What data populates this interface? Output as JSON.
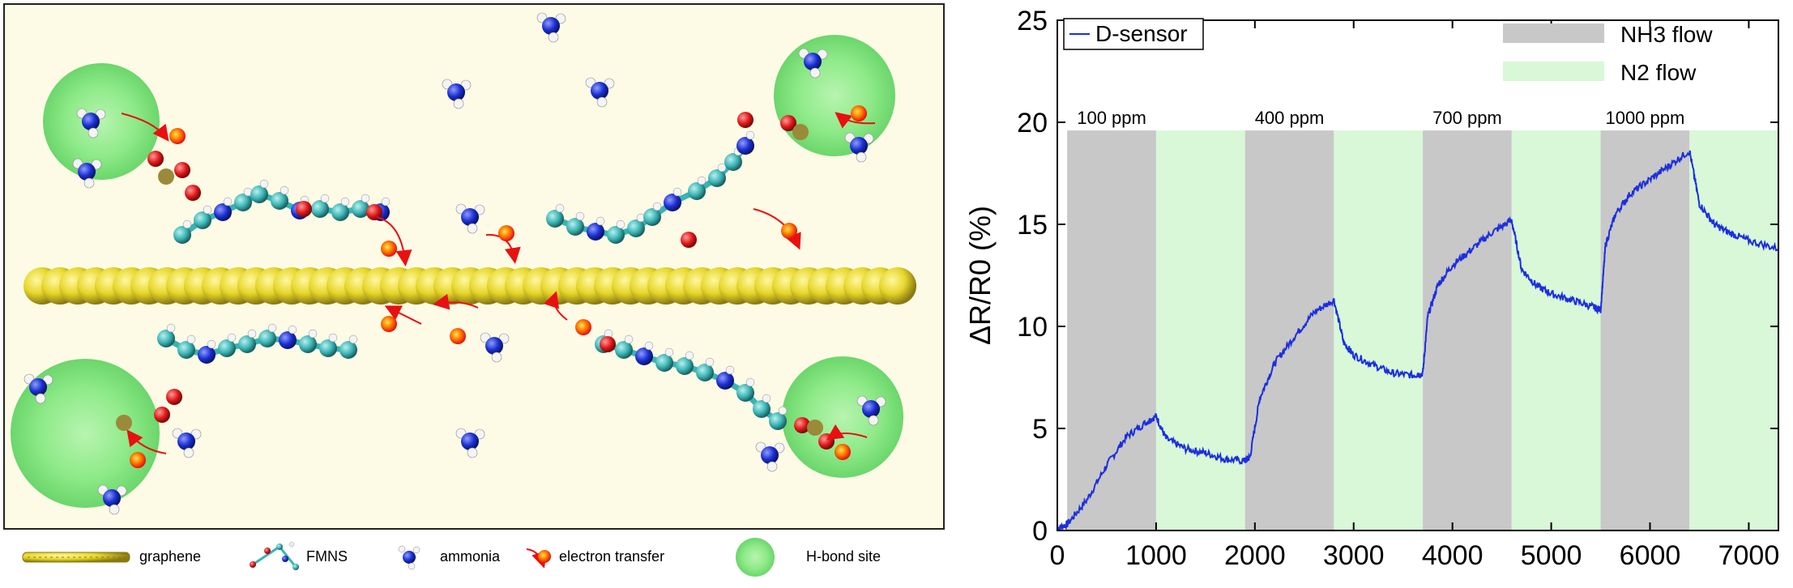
{
  "legend": {
    "graphene": "graphene",
    "fmns": "FMNS",
    "ammonia": "ammonia",
    "electron_transfer": "electron transfer",
    "hbond": "H-bond site"
  },
  "colors": {
    "panel_bg": "#fdfbe6",
    "graphene": "#e6d62a",
    "ammonia_n": "#1a2fd0",
    "oxygen": "#e01818",
    "carbon": "#3ab3b3",
    "phosphorus": "#9a8a3a",
    "hbond": "#7ee07e",
    "nh3_band": "#c8c8c8",
    "n2_band": "#d8f8d8",
    "curve": "#1c2ee0"
  },
  "chart_data": {
    "type": "line",
    "ylabel": "ΔR/R0 (%)",
    "xlim": [
      0,
      7300
    ],
    "ylim": [
      0,
      25
    ],
    "xticks": [
      0,
      1000,
      2000,
      3000,
      4000,
      5000,
      6000,
      7000
    ],
    "yticks": [
      0,
      5,
      10,
      15,
      20,
      25
    ],
    "legend_entries": [
      {
        "label": "D-sensor",
        "kind": "line",
        "color": "#1c2ee0"
      },
      {
        "label": "NH3 flow",
        "kind": "patch",
        "color": "#c8c8c8"
      },
      {
        "label": "N2 flow",
        "kind": "patch",
        "color": "#d8f8d8"
      }
    ],
    "band_top": 19.6,
    "cycles": [
      {
        "label": "100 ppm",
        "nh3": [
          100,
          1000
        ],
        "n2": [
          1000,
          1900
        ]
      },
      {
        "label": "400 ppm",
        "nh3": [
          1900,
          2800
        ],
        "n2": [
          2800,
          3700
        ]
      },
      {
        "label": "700 ppm",
        "nh3": [
          3700,
          4600
        ],
        "n2": [
          4600,
          5500
        ]
      },
      {
        "label": "1000 ppm",
        "nh3": [
          5500,
          6400
        ],
        "n2": [
          6400,
          7300
        ]
      }
    ],
    "series": [
      {
        "name": "D-sensor",
        "x": [
          0,
          100,
          300,
          500,
          700,
          900,
          1000,
          1100,
          1300,
          1500,
          1700,
          1900,
          1950,
          2050,
          2200,
          2400,
          2600,
          2800,
          2900,
          3000,
          3200,
          3400,
          3600,
          3700,
          3750,
          3850,
          4000,
          4200,
          4400,
          4600,
          4700,
          4850,
          5000,
          5200,
          5400,
          5500,
          5550,
          5650,
          5800,
          6000,
          6200,
          6400,
          6500,
          6650,
          6800,
          7000,
          7300
        ],
        "y": [
          0.1,
          0.3,
          1.5,
          3.2,
          4.6,
          5.3,
          5.6,
          4.5,
          4.0,
          3.8,
          3.5,
          3.4,
          3.6,
          6.5,
          8.2,
          9.5,
          10.7,
          11.3,
          9.2,
          8.6,
          8.1,
          7.7,
          7.6,
          7.7,
          10.5,
          12.0,
          13.0,
          13.8,
          14.6,
          15.2,
          12.8,
          12.0,
          11.6,
          11.3,
          11.0,
          10.8,
          14.0,
          15.5,
          16.5,
          17.2,
          17.9,
          18.6,
          16.0,
          15.0,
          14.6,
          14.2,
          13.8
        ]
      }
    ]
  }
}
